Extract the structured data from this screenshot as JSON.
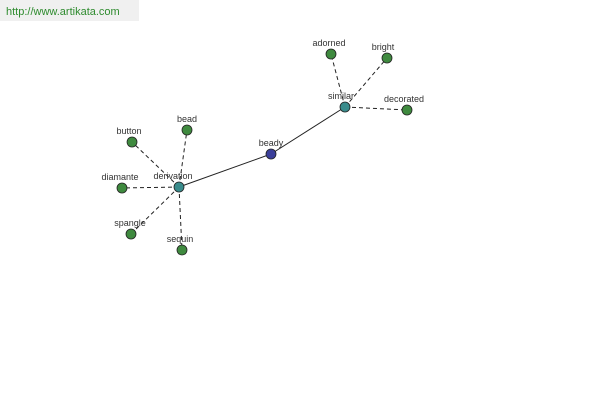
{
  "header": {
    "url": "http://www.artikata.com"
  },
  "nodes": [
    {
      "label": "beady"
    },
    {
      "label": "derivation"
    },
    {
      "label": "similar"
    },
    {
      "label": "adorned"
    },
    {
      "label": "bright"
    },
    {
      "label": "decorated"
    },
    {
      "label": "button"
    },
    {
      "label": "bead"
    },
    {
      "label": "diamante"
    },
    {
      "label": "spangle"
    },
    {
      "label": "sequin"
    }
  ]
}
